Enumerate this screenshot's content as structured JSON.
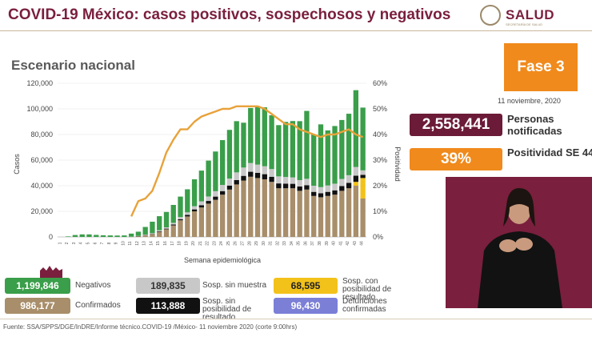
{
  "header": {
    "title": "COVID-19 México: casos positivos, sospechosos y negativos",
    "subtitle": "Escenario nacional",
    "logo_text": "SALUD",
    "logo_sub": "SECRETARÍA DE SALUD"
  },
  "fase": {
    "label": "Fase 3",
    "date": "11 noviembre, 2020"
  },
  "kpis": [
    {
      "value": "2,558,441",
      "label": "Personas notificadas",
      "color": "#6b1b37"
    },
    {
      "value": "39%",
      "label": "Positividad SE 44",
      "color": "#f08a1c"
    }
  ],
  "legend": {
    "negativos": {
      "value": "1,199,846",
      "label": "Negativos",
      "color": "#3a9e4a"
    },
    "confirmados": {
      "value": "986,177",
      "label": "Confirmados",
      "color": "#a88e6a"
    },
    "sosp_sin_muestra": {
      "value": "189,835",
      "label": "Sosp. sin muestra",
      "color": "#c8c8c8"
    },
    "sosp_sin_posibilidad": {
      "value": "113,888",
      "label": "Sosp. sin posibilidad de resultado",
      "color": "#111111"
    },
    "sosp_con_posibilidad": {
      "value": "68,595",
      "label": "Sosp. con posibilidad de resultado",
      "color": "#f3c21a"
    },
    "defunciones": {
      "value": "96,430",
      "label": "Defunciones confirmadas",
      "color": "#7b7fd6"
    }
  },
  "source": "Fuente: SSA/SPPS/DGE/InDRE/Informe técnico.COVID-19 /México- 11 noviembre 2020 (corte 9:00hrs)",
  "chart_data": {
    "type": "bar",
    "stacked": true,
    "xlabel": "Semana epidemiológica",
    "ylabel": "Casos",
    "y2label": "Positividad",
    "ylim": [
      0,
      120000
    ],
    "y2lim": [
      0,
      60
    ],
    "yticks": [
      "0",
      "20,000",
      "40,000",
      "60,000",
      "80,000",
      "100,000",
      "120,000"
    ],
    "y2ticks": [
      "0%",
      "10%",
      "20%",
      "30%",
      "40%",
      "50%",
      "60%"
    ],
    "categories": [
      "1",
      "2",
      "3",
      "4",
      "5",
      "6",
      "7",
      "8",
      "9",
      "10",
      "11",
      "12",
      "13",
      "14",
      "15",
      "16",
      "17",
      "18",
      "19",
      "20",
      "21",
      "22",
      "23",
      "24",
      "25",
      "26",
      "27",
      "28",
      "29",
      "30",
      "31",
      "32",
      "33",
      "34",
      "35",
      "36",
      "37",
      "38",
      "39",
      "40",
      "41",
      "42",
      "43",
      "44"
    ],
    "series": [
      {
        "name": "Confirmados",
        "color": "#a88e6a",
        "values": [
          0,
          0,
          0,
          0,
          0,
          0,
          0,
          0,
          0,
          0,
          100,
          500,
          1200,
          2000,
          4000,
          6000,
          9000,
          13000,
          16000,
          20000,
          23000,
          26000,
          29000,
          33000,
          37000,
          41000,
          44000,
          47000,
          46000,
          45000,
          43000,
          38000,
          38000,
          38000,
          36000,
          37000,
          32000,
          31000,
          32000,
          33000,
          36000,
          38000,
          40000,
          30000
        ]
      },
      {
        "name": "Sosp. con posibilidad de resultado",
        "color": "#f3c21a",
        "values": [
          0,
          0,
          0,
          0,
          0,
          0,
          0,
          0,
          0,
          0,
          0,
          0,
          0,
          0,
          0,
          0,
          0,
          0,
          0,
          0,
          0,
          0,
          0,
          0,
          0,
          0,
          0,
          0,
          0,
          0,
          0,
          0,
          0,
          0,
          0,
          0,
          0,
          0,
          0,
          0,
          0,
          0,
          3000,
          16000
        ]
      },
      {
        "name": "Sosp. sin posibilidad de resultado",
        "color": "#111111",
        "values": [
          0,
          0,
          0,
          0,
          0,
          0,
          0,
          0,
          0,
          0,
          0,
          100,
          200,
          300,
          400,
          500,
          700,
          900,
          1200,
          1500,
          1800,
          2100,
          2500,
          2800,
          3100,
          3400,
          3700,
          3900,
          4000,
          4000,
          4000,
          3800,
          3600,
          3500,
          3400,
          3400,
          3200,
          3100,
          3200,
          3400,
          3700,
          4200,
          4800,
          2500
        ]
      },
      {
        "name": "Sosp. sin muestra",
        "color": "#c8c8c8",
        "values": [
          0,
          0,
          0,
          0,
          0,
          0,
          0,
          0,
          0,
          0,
          100,
          200,
          400,
          600,
          800,
          1000,
          1300,
          1600,
          2000,
          2500,
          3000,
          3500,
          4200,
          4800,
          5500,
          6000,
          6500,
          6800,
          6500,
          6200,
          6000,
          5500,
          5200,
          5000,
          5000,
          5000,
          4800,
          4800,
          5000,
          5200,
          5600,
          6000,
          6800,
          3500
        ]
      },
      {
        "name": "Negativos",
        "color": "#3a9e4a",
        "values": [
          0,
          400,
          1500,
          2000,
          2000,
          1600,
          1300,
          1200,
          1100,
          1200,
          2400,
          3300,
          6000,
          9000,
          11000,
          12000,
          14000,
          16000,
          18000,
          21000,
          24000,
          28000,
          31000,
          35000,
          38000,
          40000,
          35000,
          43000,
          45000,
          46000,
          42000,
          40000,
          43000,
          44000,
          46000,
          53000,
          40000,
          49000,
          43000,
          45000,
          46000,
          48000,
          60000,
          49000
        ]
      },
      {
        "name": "Positividad",
        "type": "line",
        "axis": "y2",
        "color": "#e8a23a",
        "values": [
          null,
          null,
          null,
          null,
          null,
          null,
          null,
          null,
          null,
          null,
          8,
          14,
          15,
          18,
          25,
          33,
          38,
          42,
          42,
          45,
          47,
          48,
          49,
          50,
          50,
          51,
          51,
          51,
          51,
          50,
          48,
          46,
          44,
          44,
          42,
          41,
          40,
          39,
          40,
          40,
          41,
          42,
          40,
          39
        ]
      }
    ]
  }
}
